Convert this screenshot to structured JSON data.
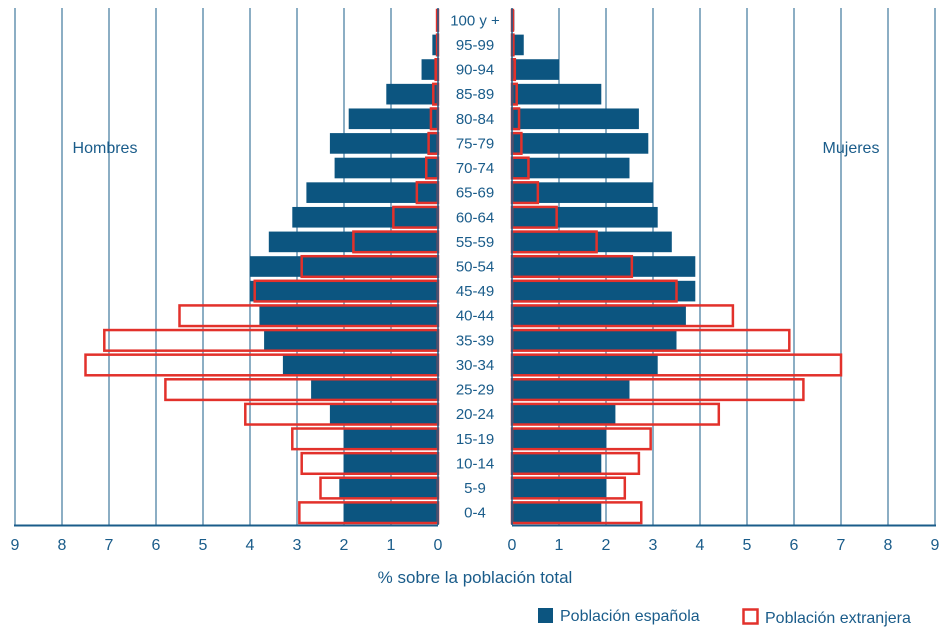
{
  "chart_data": {
    "type": "bar",
    "subtype": "population-pyramid",
    "categories": [
      "0-4",
      "5-9",
      "10-14",
      "15-19",
      "20-24",
      "25-29",
      "30-34",
      "35-39",
      "40-44",
      "45-49",
      "50-54",
      "55-59",
      "60-64",
      "65-69",
      "70-74",
      "75-79",
      "80-84",
      "85-89",
      "90-94",
      "95-99",
      "100 y +"
    ],
    "series": [
      {
        "name": "Población española",
        "style": "filled",
        "color": "#0c5580",
        "hombres": [
          2.0,
          2.1,
          2.0,
          2.0,
          2.3,
          2.7,
          3.3,
          3.7,
          3.8,
          4.0,
          4.0,
          3.6,
          3.1,
          2.8,
          2.2,
          2.3,
          1.9,
          1.1,
          0.35,
          0.12,
          0.03
        ],
        "mujeres": [
          1.9,
          2.0,
          1.9,
          2.0,
          2.2,
          2.5,
          3.1,
          3.5,
          3.7,
          3.9,
          3.9,
          3.4,
          3.1,
          3.0,
          2.5,
          2.9,
          2.7,
          1.9,
          1.0,
          0.25,
          0.05
        ]
      },
      {
        "name": "Población extranjera",
        "style": "outline",
        "color": "#e2312b",
        "hombres": [
          2.95,
          2.5,
          2.9,
          3.1,
          4.1,
          5.8,
          7.5,
          7.1,
          5.5,
          3.9,
          2.9,
          1.8,
          0.95,
          0.45,
          0.25,
          0.2,
          0.15,
          0.1,
          0.05,
          0.02,
          0.02
        ],
        "mujeres": [
          2.75,
          2.4,
          2.7,
          2.95,
          4.4,
          6.2,
          7.0,
          5.9,
          4.7,
          3.5,
          2.55,
          1.8,
          0.95,
          0.55,
          0.35,
          0.2,
          0.15,
          0.1,
          0.06,
          0.03,
          0.02
        ]
      }
    ],
    "xlim": [
      0,
      9
    ],
    "xticks": [
      "0",
      "1",
      "2",
      "3",
      "4",
      "5",
      "6",
      "7",
      "8",
      "9"
    ],
    "xlabel": "% sobre la población total",
    "left_label": "Hombres",
    "right_label": "Mujeres",
    "grid": true,
    "legend_position": "bottom-right"
  }
}
